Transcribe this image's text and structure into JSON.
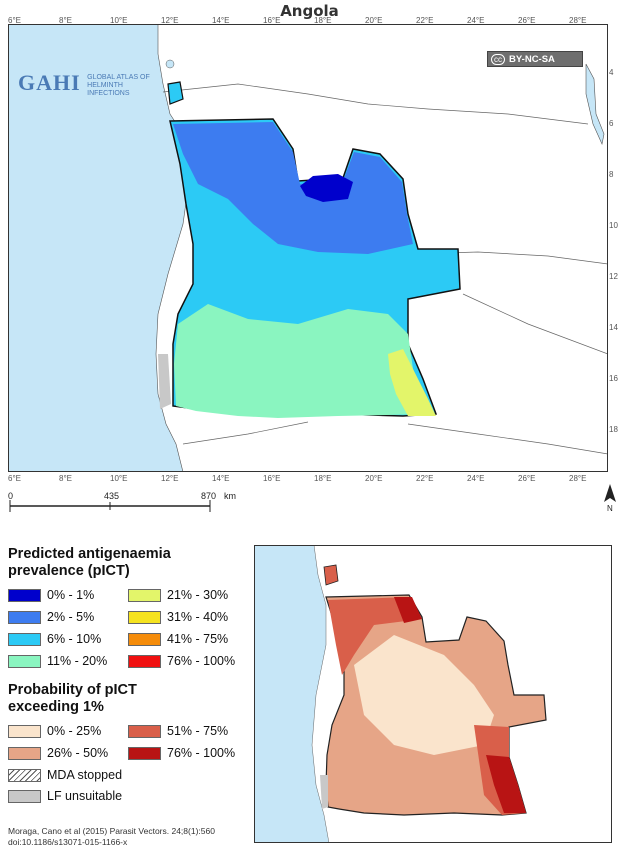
{
  "title": "Angola",
  "logo": {
    "text": "GAHI",
    "subtitle": "GLOBAL ATLAS OF HELMINTH INFECTIONS"
  },
  "license": {
    "badge": "cc",
    "text": "BY-NC-SA"
  },
  "lon_ticks": [
    "6°E",
    "8°E",
    "10°E",
    "12°E",
    "14°E",
    "16°E",
    "18°E",
    "20°E",
    "22°E",
    "24°E",
    "26°E",
    "28°E"
  ],
  "lat_ticks_right": [
    "4",
    "6",
    "8",
    "10",
    "12",
    "14",
    "16",
    "18"
  ],
  "scale_bar": {
    "labels": [
      "0",
      "435",
      "870"
    ],
    "unit": "km"
  },
  "north_label": "N",
  "legend1": {
    "heading_line1": "Predicted antigenaemia",
    "heading_line2": "prevalence (pICT)",
    "items": [
      {
        "label": "0% - 1%",
        "color": "#0000cc"
      },
      {
        "label": "21% - 30%",
        "color": "#e3f56a"
      },
      {
        "label": "2% - 5%",
        "color": "#3d7cf0"
      },
      {
        "label": "31% - 40%",
        "color": "#f5e320"
      },
      {
        "label": "6% - 10%",
        "color": "#2ccaf5"
      },
      {
        "label": "41% - 75%",
        "color": "#f58c0a"
      },
      {
        "label": "11% - 20%",
        "color": "#8af5c0"
      },
      {
        "label": "76% - 100%",
        "color": "#f01010"
      }
    ]
  },
  "legend2": {
    "heading_line1": "Probability of pICT",
    "heading_line2": "exceeding 1%",
    "items": [
      {
        "label": "0% - 25%",
        "color": "#fae4cc"
      },
      {
        "label": "51% - 75%",
        "color": "#d95f4a"
      },
      {
        "label": "26% - 50%",
        "color": "#e6a587"
      },
      {
        "label": "76% - 100%",
        "color": "#b81414"
      }
    ]
  },
  "other_legend": [
    {
      "label": "MDA stopped",
      "pattern": "hatched"
    },
    {
      "label": "LF unsuitable",
      "color": "#c8c8c8"
    }
  ],
  "citation_line1": "Moraga, Cano et al (2015) Parasit Vectors. 24;8(1):560",
  "citation_line2": "doi:10.1186/s13071-015-1166-x",
  "colors": {
    "ocean": "#c6e6f7",
    "land": "#ffffff",
    "border": "#222222"
  }
}
